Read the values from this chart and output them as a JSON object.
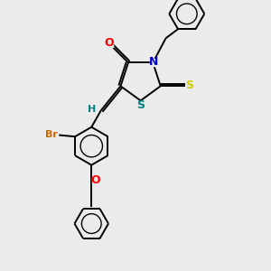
{
  "bg_color": "#ebebeb",
  "bond_color": "#000000",
  "O_color": "#ff0000",
  "N_color": "#0000cd",
  "S_thioxo_color": "#cccc00",
  "S_ring_color": "#008080",
  "Br_color": "#cc6600",
  "H_color": "#008080",
  "bond_width": 1.4,
  "dbo": 0.025,
  "font_size": 8,
  "fig_width": 3.0,
  "fig_height": 3.0,
  "dpi": 100,
  "xlim": [
    0.0,
    6.5
  ],
  "ylim": [
    -0.5,
    7.5
  ]
}
